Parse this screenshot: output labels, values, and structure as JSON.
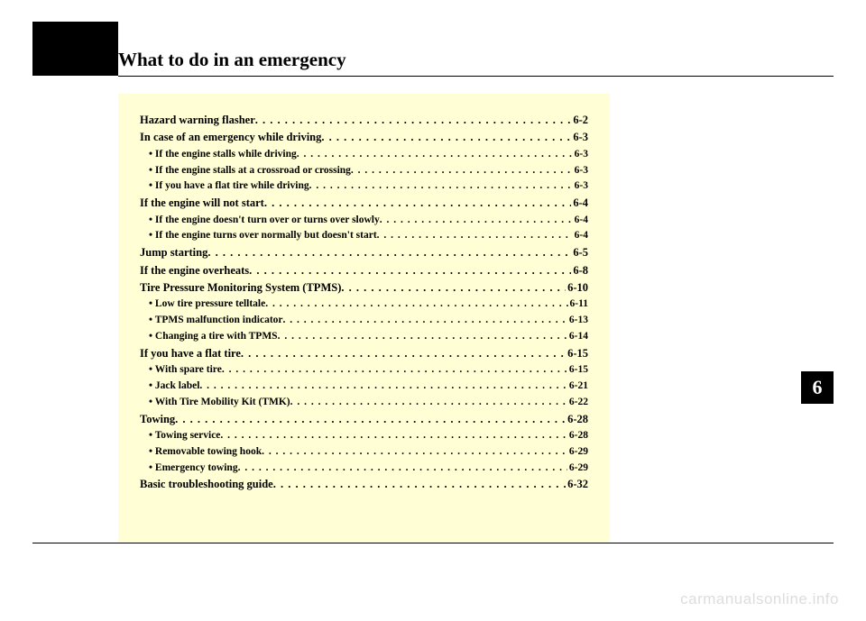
{
  "title": "What to do in an emergency",
  "chapter_number": "6",
  "watermark": "carmanualsonline.info",
  "colors": {
    "page_bg": "#ffffff",
    "content_bg": "#fffed4",
    "black": "#000000",
    "watermark": "#dddddd"
  },
  "toc": [
    {
      "level": "main",
      "label": "Hazard warning flasher",
      "page": "6-2"
    },
    {
      "level": "main",
      "label": "In case of an emergency while driving",
      "page": "6-3"
    },
    {
      "level": "sub",
      "label": "• If the engine stalls while driving",
      "page": "6-3"
    },
    {
      "level": "sub",
      "label": "• If the engine stalls at a crossroad or crossing",
      "page": "6-3"
    },
    {
      "level": "sub",
      "label": "• If you have a flat tire while driving",
      "page": "6-3"
    },
    {
      "level": "main",
      "label": "If the engine will not start",
      "page": "6-4"
    },
    {
      "level": "sub",
      "label": "• If the engine doesn't turn over or turns over slowly",
      "page": "6-4"
    },
    {
      "level": "sub",
      "label": "• If the engine turns over normally but doesn't start",
      "page": "6-4"
    },
    {
      "level": "main",
      "label": "Jump starting",
      "page": "6-5"
    },
    {
      "level": "main",
      "label": "If the engine overheats",
      "page": "6-8"
    },
    {
      "level": "main",
      "label": "Tire Pressure Monitoring System (TPMS)",
      "page": "6-10"
    },
    {
      "level": "sub",
      "label": "• Low tire pressure telltale",
      "page": "6-11"
    },
    {
      "level": "sub",
      "label": "• TPMS malfunction indicator",
      "page": "6-13"
    },
    {
      "level": "sub",
      "label": "• Changing a tire with TPMS",
      "page": "6-14"
    },
    {
      "level": "main",
      "label": "If you have a flat tire",
      "page": "6-15"
    },
    {
      "level": "sub",
      "label": "• With spare tire",
      "page": "6-15"
    },
    {
      "level": "sub",
      "label": "• Jack label",
      "page": "6-21"
    },
    {
      "level": "sub",
      "label": "• With Tire Mobility Kit (TMK)",
      "page": "6-22"
    },
    {
      "level": "main",
      "label": "Towing",
      "page": "6-28"
    },
    {
      "level": "sub",
      "label": "• Towing service",
      "page": "6-28"
    },
    {
      "level": "sub",
      "label": "• Removable towing hook",
      "page": "6-29"
    },
    {
      "level": "sub",
      "label": "• Emergency towing",
      "page": "6-29"
    },
    {
      "level": "main",
      "label": "Basic troubleshooting guide",
      "page": "6-32"
    }
  ]
}
